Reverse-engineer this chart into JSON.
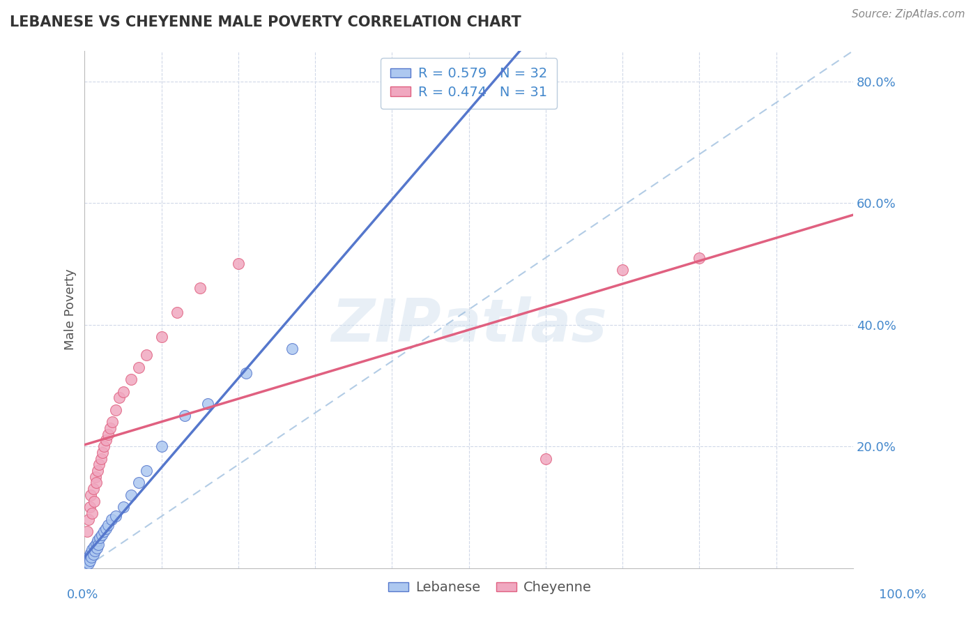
{
  "title": "LEBANESE VS CHEYENNE MALE POVERTY CORRELATION CHART",
  "source": "Source: ZipAtlas.com",
  "ylabel": "Male Poverty",
  "legend_entries": [
    {
      "label": "Lebanese",
      "R": 0.579,
      "N": 32,
      "color": "#adc8f0",
      "line_color": "#5577cc"
    },
    {
      "label": "Cheyenne",
      "R": 0.474,
      "N": 31,
      "color": "#f0a8c0",
      "line_color": "#e06080"
    }
  ],
  "lebanese_x": [
    0.002,
    0.003,
    0.004,
    0.005,
    0.006,
    0.007,
    0.008,
    0.009,
    0.01,
    0.011,
    0.012,
    0.013,
    0.015,
    0.016,
    0.017,
    0.018,
    0.02,
    0.022,
    0.025,
    0.028,
    0.03,
    0.035,
    0.04,
    0.05,
    0.06,
    0.07,
    0.08,
    0.1,
    0.13,
    0.16,
    0.21,
    0.27
  ],
  "lebanese_y": [
    0.005,
    0.01,
    0.015,
    0.008,
    0.02,
    0.012,
    0.025,
    0.018,
    0.03,
    0.022,
    0.035,
    0.028,
    0.04,
    0.033,
    0.045,
    0.038,
    0.05,
    0.055,
    0.06,
    0.065,
    0.07,
    0.08,
    0.085,
    0.1,
    0.12,
    0.14,
    0.16,
    0.2,
    0.25,
    0.27,
    0.32,
    0.36
  ],
  "cheyenne_x": [
    0.003,
    0.005,
    0.007,
    0.008,
    0.01,
    0.011,
    0.012,
    0.014,
    0.015,
    0.017,
    0.019,
    0.021,
    0.023,
    0.025,
    0.028,
    0.03,
    0.033,
    0.036,
    0.04,
    0.045,
    0.05,
    0.06,
    0.07,
    0.08,
    0.1,
    0.12,
    0.15,
    0.2,
    0.6,
    0.7,
    0.8
  ],
  "cheyenne_y": [
    0.06,
    0.08,
    0.1,
    0.12,
    0.09,
    0.13,
    0.11,
    0.15,
    0.14,
    0.16,
    0.17,
    0.18,
    0.19,
    0.2,
    0.21,
    0.22,
    0.23,
    0.24,
    0.26,
    0.28,
    0.29,
    0.31,
    0.33,
    0.35,
    0.38,
    0.42,
    0.46,
    0.5,
    0.18,
    0.49,
    0.51
  ],
  "lb_line": [
    0.0,
    1.0,
    0.0,
    0.45
  ],
  "ch_line": [
    0.0,
    1.0,
    0.22,
    0.47
  ],
  "diag_line": [
    0.0,
    1.0,
    0.0,
    0.85
  ],
  "background_color": "#ffffff",
  "grid_color": "#d0d8e8",
  "xlim": [
    0.0,
    1.0
  ],
  "ylim": [
    0.0,
    0.85
  ],
  "y_ticks": [
    0.2,
    0.4,
    0.6,
    0.8
  ],
  "y_tick_labels": [
    "20.0%",
    "40.0%",
    "60.0%",
    "80.0%"
  ]
}
